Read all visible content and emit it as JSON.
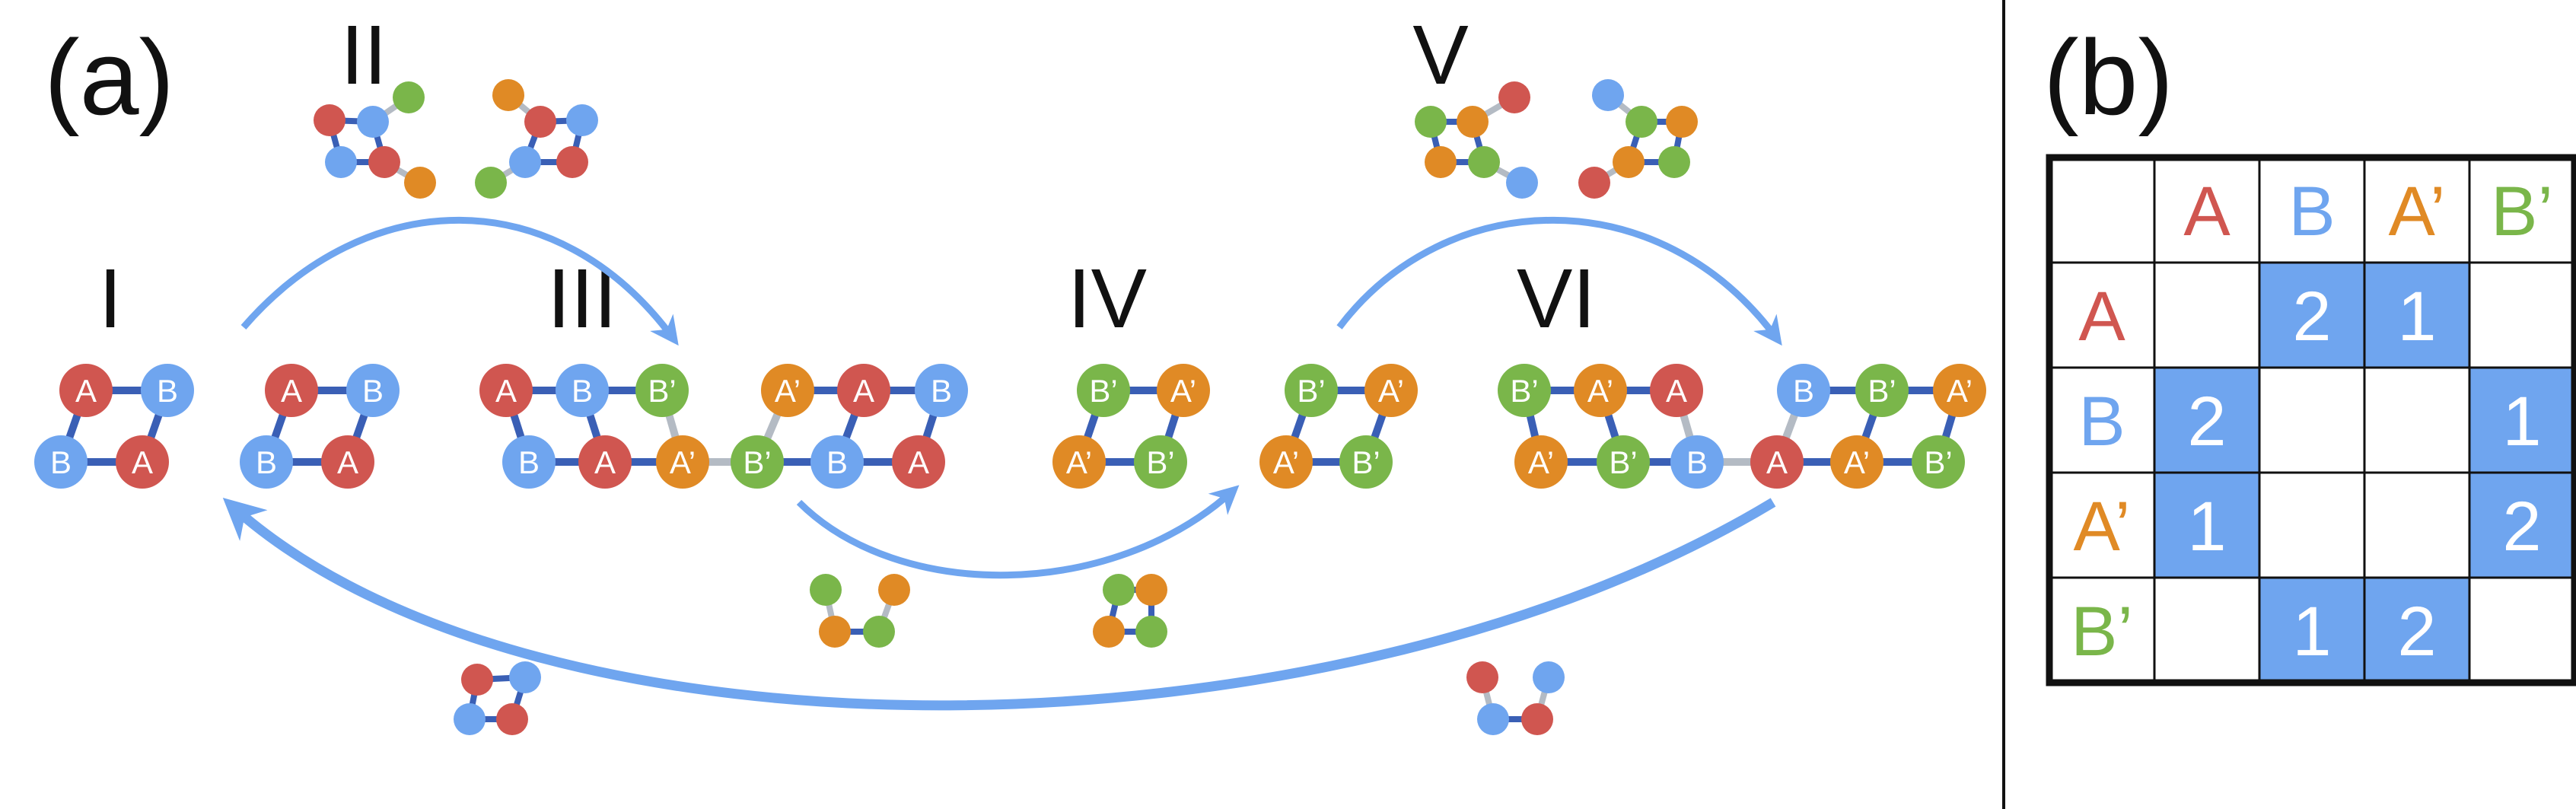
{
  "panel_a_label": "(a)",
  "panel_b_label": "(b)",
  "stage_labels": [
    "I",
    "II",
    "III",
    "IV",
    "V",
    "VI"
  ],
  "node_types": {
    "A": {
      "text": "A",
      "color": "#d05650"
    },
    "B": {
      "text": "B",
      "color": "#6fa5ef"
    },
    "Ap": {
      "text": "A’",
      "color": "#e08a25"
    },
    "Bp": {
      "text": "B’",
      "color": "#7ab64a"
    }
  },
  "matrix": {
    "headers": [
      "A",
      "B",
      "A’",
      "B’"
    ],
    "header_keys": [
      "A",
      "B",
      "Ap",
      "Bp"
    ],
    "values": [
      [
        "",
        "2",
        "1",
        ""
      ],
      [
        "2",
        "",
        "",
        "1"
      ],
      [
        "1",
        "",
        "",
        "2"
      ],
      [
        "",
        "1",
        "2",
        ""
      ]
    ],
    "fill_color": "#6fa5ef"
  },
  "colors": {
    "strong_edge": "#3a5fb5",
    "weak_edge": "#b4bbc4",
    "arrow": "#6fa5ef",
    "text": "#111111"
  }
}
